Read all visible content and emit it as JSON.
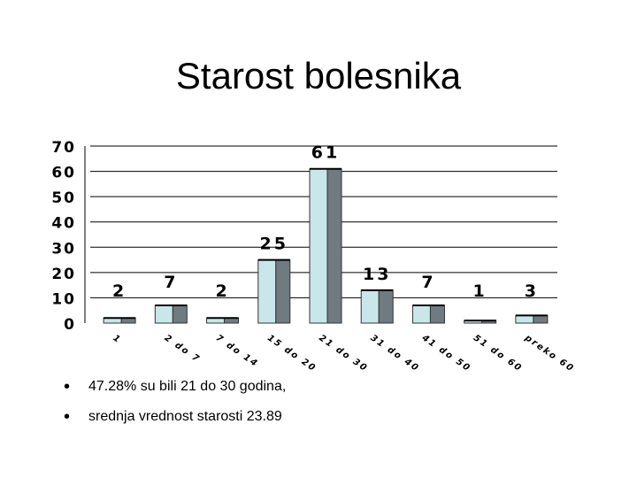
{
  "slide": {
    "title": "Starost bolesnika"
  },
  "chart_data": {
    "type": "bar",
    "title": "",
    "xlabel": "",
    "ylabel": "",
    "ylim": [
      0,
      70
    ],
    "yticks": [
      0,
      10,
      20,
      30,
      40,
      50,
      60,
      70
    ],
    "categories": [
      "1",
      "2 do 7",
      "7 do 14",
      "15 do 20",
      "21 do 30",
      "31 do 40",
      "41 do 50",
      "51 do 60",
      "preko 60"
    ],
    "values": [
      2,
      7,
      2,
      25,
      61,
      13,
      7,
      1,
      3
    ],
    "grid": true,
    "bar_color_front": "#c9e6ea",
    "bar_color_side": "#6f7b80"
  },
  "bullets": [
    "47.28% su bili 21 do 30 godina,",
    "srednja vrednost starosti 23.89"
  ]
}
